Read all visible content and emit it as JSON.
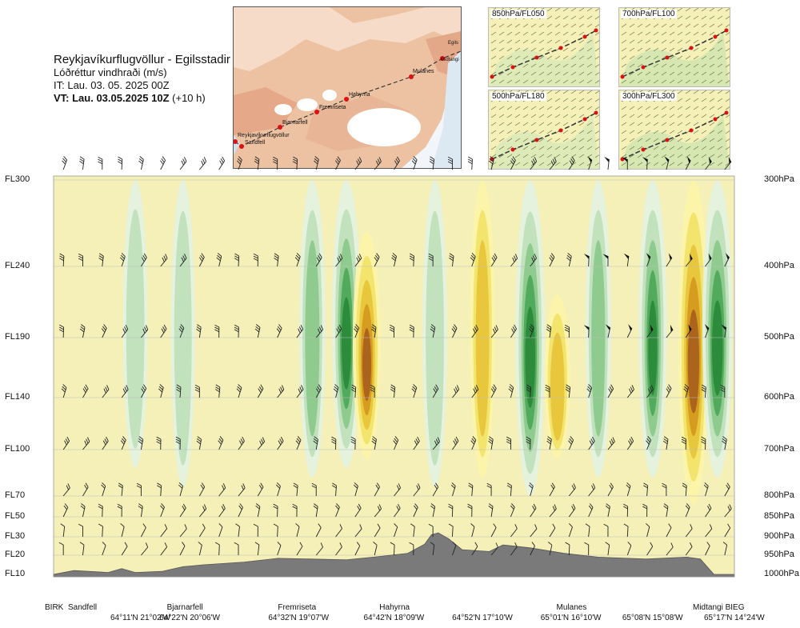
{
  "header": {
    "route": "Reykjavíkurflugvöllur - Egilsstadir",
    "subtitle": "Lóðréttur vindhraði (m/s)",
    "issue": "IT: Lau. 03. 05. 2025 00Z",
    "valid_bold": "VT: Lau. 03.05.2025 10Z",
    "valid_offset": "(+10 h)"
  },
  "map": {
    "places": [
      "Reykjavíkurflugvöllur",
      "Sandfell",
      "Bjarnarfell",
      "Fremriseta",
      "Hahyrna",
      "Mulanes",
      "Midtangi",
      "Egils"
    ]
  },
  "mini_maps": [
    {
      "label": "850hPa/FL050"
    },
    {
      "label": "700hPa/FL100"
    },
    {
      "label": "500hPa/FL180"
    },
    {
      "label": "300hPa/FL300"
    }
  ],
  "colors": {
    "terrain": "#7a7a7a",
    "upward": "#3a9a3a",
    "downward": "#d09a10",
    "neutral": "#f5f0b8",
    "route_line": "#333333",
    "route_points": "#dd1111"
  },
  "chart_data": {
    "type": "heatmap",
    "title": "Lóðréttur vindhraði (m/s)",
    "left_axis_labels": [
      "FL300",
      "FL240",
      "FL190",
      "FL140",
      "FL100",
      "FL70",
      "FL50",
      "FL30",
      "FL20",
      "FL10"
    ],
    "right_axis_labels": [
      "300hPa",
      "400hPa",
      "500hPa",
      "600hPa",
      "700hPa",
      "800hPa",
      "850hPa",
      "900hPa",
      "950hPa",
      "1000hPa"
    ],
    "pressure_levels_hpa": [
      300,
      400,
      500,
      600,
      700,
      800,
      850,
      900,
      950,
      1000
    ],
    "x_labels": [
      {
        "name": "BIRK",
        "coord": ""
      },
      {
        "name": "Sandfell",
        "coord": "64°11'N 21°02'W"
      },
      {
        "name": "Bjarnarfell",
        "coord": "64°22'N 20°06'W"
      },
      {
        "name": "Fremriseta",
        "coord": "64°32'N 19°07'W"
      },
      {
        "name": "Hahyrna",
        "coord": "64°42'N 18°09'W"
      },
      {
        "name": "",
        "coord": "64°52'N 17°10'W"
      },
      {
        "name": "Mulanes",
        "coord": "65°01'N 16°10'W"
      },
      {
        "name": "",
        "coord": "65°08'N 15°08'W"
      },
      {
        "name": "Midtangi BIEG",
        "coord": "65°17'N 14°24'W"
      }
    ],
    "vertical_motion_columns": [
      {
        "x": 0.12,
        "top_hpa": 300,
        "bottom_hpa": 740,
        "sign": "up",
        "peak": 0.35
      },
      {
        "x": 0.19,
        "top_hpa": 300,
        "bottom_hpa": 780,
        "sign": "up",
        "peak": 0.25
      },
      {
        "x": 0.38,
        "top_hpa": 300,
        "bottom_hpa": 760,
        "sign": "up",
        "peak": 0.6
      },
      {
        "x": 0.43,
        "top_hpa": 300,
        "bottom_hpa": 740,
        "sign": "up",
        "peak": 1.0
      },
      {
        "x": 0.46,
        "top_hpa": 360,
        "bottom_hpa": 720,
        "sign": "down",
        "peak": 0.9
      },
      {
        "x": 0.56,
        "top_hpa": 300,
        "bottom_hpa": 780,
        "sign": "up",
        "peak": 0.35
      },
      {
        "x": 0.63,
        "top_hpa": 300,
        "bottom_hpa": 760,
        "sign": "down",
        "peak": 0.45
      },
      {
        "x": 0.7,
        "top_hpa": 300,
        "bottom_hpa": 800,
        "sign": "up",
        "peak": 1.1
      },
      {
        "x": 0.74,
        "top_hpa": 440,
        "bottom_hpa": 720,
        "sign": "down",
        "peak": 0.55
      },
      {
        "x": 0.8,
        "top_hpa": 300,
        "bottom_hpa": 760,
        "sign": "up",
        "peak": 0.5
      },
      {
        "x": 0.88,
        "top_hpa": 300,
        "bottom_hpa": 760,
        "sign": "up",
        "peak": 0.9
      },
      {
        "x": 0.94,
        "top_hpa": 300,
        "bottom_hpa": 820,
        "sign": "down",
        "peak": 1.3
      },
      {
        "x": 0.975,
        "top_hpa": 300,
        "bottom_hpa": 760,
        "sign": "up",
        "peak": 1.2
      }
    ],
    "terrain_profile_hpa": [
      {
        "x": 0.0,
        "p": 1000
      },
      {
        "x": 0.03,
        "p": 990
      },
      {
        "x": 0.08,
        "p": 995
      },
      {
        "x": 0.1,
        "p": 985
      },
      {
        "x": 0.12,
        "p": 995
      },
      {
        "x": 0.16,
        "p": 992
      },
      {
        "x": 0.19,
        "p": 980
      },
      {
        "x": 0.22,
        "p": 975
      },
      {
        "x": 0.28,
        "p": 968
      },
      {
        "x": 0.33,
        "p": 958
      },
      {
        "x": 0.38,
        "p": 960
      },
      {
        "x": 0.43,
        "p": 962
      },
      {
        "x": 0.47,
        "p": 955
      },
      {
        "x": 0.52,
        "p": 945
      },
      {
        "x": 0.545,
        "p": 920
      },
      {
        "x": 0.555,
        "p": 895
      },
      {
        "x": 0.565,
        "p": 890
      },
      {
        "x": 0.58,
        "p": 905
      },
      {
        "x": 0.6,
        "p": 935
      },
      {
        "x": 0.64,
        "p": 940
      },
      {
        "x": 0.66,
        "p": 922
      },
      {
        "x": 0.7,
        "p": 930
      },
      {
        "x": 0.75,
        "p": 945
      },
      {
        "x": 0.8,
        "p": 955
      },
      {
        "x": 0.87,
        "p": 960
      },
      {
        "x": 0.93,
        "p": 955
      },
      {
        "x": 0.95,
        "p": 960
      },
      {
        "x": 0.97,
        "p": 1000
      },
      {
        "x": 1.0,
        "p": 1000
      }
    ],
    "wind_barb_levels_hpa": [
      300,
      400,
      500,
      600,
      700,
      800,
      850,
      900,
      950
    ],
    "grid": true
  }
}
